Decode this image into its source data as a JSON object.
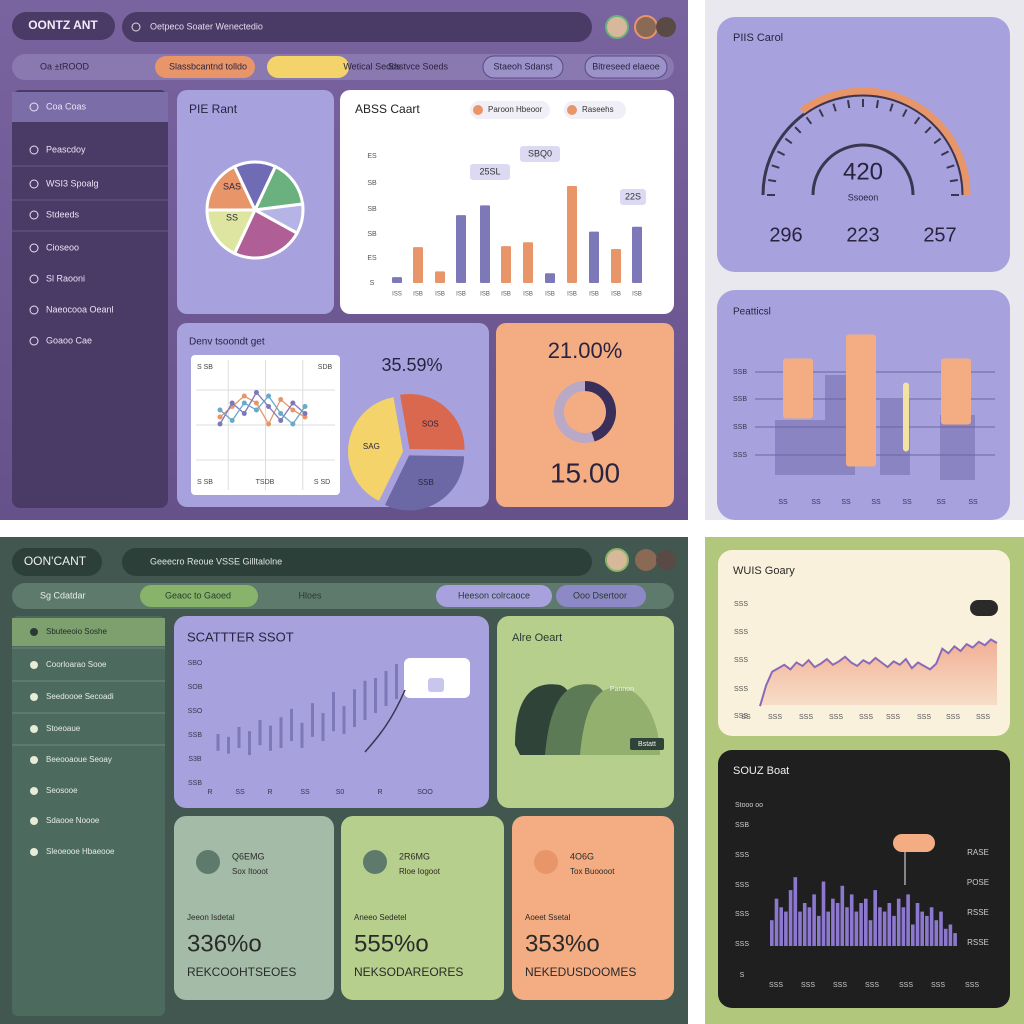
{
  "top_left": {
    "brand": "OONTZ ANT",
    "search": "Oetpeco Soater   Wenectedio",
    "tabs": [
      "Oa ±tROOD",
      "Slassbcantnd tolldo",
      "Wetical Sedds",
      "Sastvce Soeds",
      "Staeoh Sdanst",
      "Bitreseed elaeoe"
    ],
    "sidebar": [
      "Coa Coas",
      "Peascdoy",
      "WSI3 Spoalg",
      "Stdeeds",
      "Cioseoo",
      "Sl Raooni",
      "Naeocooa Oeanl",
      "Goaoo Cae"
    ],
    "pie": {
      "title": "PIE Rant",
      "labels": [
        "SAS",
        "SS"
      ],
      "values": [
        18,
        14,
        16,
        10,
        24,
        18
      ],
      "colors": [
        "#e8956a",
        "#6f6bb5",
        "#6ab17f",
        "#b6b3e6",
        "#b05e96",
        "#dde5a0"
      ]
    },
    "bar": {
      "title": "ABSS Caart",
      "legend": [
        "Paroon Hbeoor",
        "Raseehs"
      ],
      "ytick_labels": [
        "ES",
        "SB",
        "SB",
        "SB",
        "ES",
        "S"
      ],
      "categories": [
        "ISS",
        "ISB",
        "ISB",
        "ISB",
        "ISB",
        "ISB",
        "ISB",
        "ISB",
        "ISB",
        "ISB",
        "ISB",
        "ISB"
      ],
      "values": [
        6,
        37,
        12,
        70,
        80,
        38,
        42,
        10,
        100,
        53,
        35,
        58
      ],
      "colors": [
        "#7d78b8",
        "#e8956a",
        "#e8956a",
        "#7d78b8",
        "#7d78b8",
        "#e8956a",
        "#e8956a",
        "#7d78b8",
        "#e8956a",
        "#7d78b8",
        "#e8956a",
        "#7d78b8"
      ],
      "ylim": [
        0,
        100
      ],
      "callouts": [
        "SBQ0",
        "25SL",
        "22S"
      ]
    },
    "line": {
      "title": "Denv tsoondt get",
      "corner_labels": [
        "S SB",
        "SDB",
        "S SB",
        "TSDB",
        "S SD"
      ],
      "ylim": [
        0,
        100
      ],
      "series": [
        {
          "color": "#e8956a",
          "values": [
            40,
            55,
            70,
            60,
            30,
            65,
            50,
            40
          ]
        },
        {
          "color": "#7d78b8",
          "values": [
            30,
            60,
            45,
            75,
            55,
            35,
            60,
            45
          ]
        },
        {
          "color": "#6aa9c8",
          "values": [
            50,
            35,
            60,
            50,
            70,
            45,
            30,
            55
          ]
        }
      ]
    },
    "split": {
      "value_text": "35.59%",
      "labels": [
        "SOS",
        "SSB",
        "SAG"
      ],
      "values": [
        28,
        32,
        40
      ],
      "colors": [
        "#d9684e",
        "#6c68a6",
        "#f3d36a"
      ]
    },
    "donut": {
      "top": "21.00%",
      "bottom": "15.00",
      "values": [
        45,
        55
      ],
      "colors": [
        "#3a2f5a",
        "#b9a9c6"
      ]
    }
  },
  "top_right": {
    "gauge": {
      "title": "PIIS Carol",
      "value": 420,
      "range": [
        0,
        600
      ],
      "caption": "Ssoeon",
      "stats": [
        296,
        223,
        257
      ]
    },
    "bars": {
      "title": "Peatticsl",
      "ytick_labels": [
        "SSB",
        "SSB",
        "SSB",
        "SSS"
      ],
      "xtick_labels": [
        "SS",
        "SS",
        "SS",
        "SS",
        "SS",
        "SS",
        "SS"
      ],
      "ylim": [
        0,
        100
      ],
      "low": [
        41,
        9,
        19,
        37
      ],
      "high": [
        81,
        97,
        65,
        81
      ],
      "colors": [
        "#f4ad83",
        "#f4ad83",
        "#f3e3a0",
        "#f4ad83"
      ]
    }
  },
  "bottom_left": {
    "brand": "OON'CANT",
    "search": "Geeecro Reoue   VSSE Gilltalolne",
    "tabs": [
      "Sg Cdatdar",
      "Geaoc to Gaoed",
      "Hloes",
      "Heeson colrcaoce",
      "Ooo Dsertoor"
    ],
    "sidebar": [
      "Sbuteeoio Soshe",
      "Coorloarao Sooe",
      "Seedoooe Secoadi",
      "Stoeoaue",
      "Beeooaoue Seoay",
      "Seosooe",
      "Sdaooe Noooe",
      "Sleoeooe Hbaeooe"
    ],
    "scatter": {
      "title": "SCATTTER SSOT",
      "ytick_labels": [
        "SBO",
        "SOB",
        "SSO",
        "SSB",
        "S3B",
        "SSB"
      ],
      "xtick_labels": [
        "R",
        "SS",
        "R",
        "SS",
        "S0",
        "R",
        "SOO"
      ],
      "ylim": [
        0,
        100
      ],
      "low": [
        28,
        26,
        30,
        25,
        32,
        28,
        30,
        35,
        30,
        38,
        35,
        42,
        40,
        45,
        50,
        55,
        60,
        65
      ],
      "high": [
        40,
        38,
        45,
        42,
        50,
        46,
        52,
        58,
        48,
        62,
        55,
        70,
        60,
        72,
        78,
        80,
        85,
        90
      ]
    },
    "area": {
      "title": "Alre Oeart",
      "labels": [
        "Pannon",
        "Bstatt"
      ]
    },
    "kpis": [
      {
        "icon_text": "Q6EMG",
        "sub": "Sox Itooot",
        "label": "Jeeon Isdetal",
        "value": "336%o",
        "caption": "REKCOOHTSEOES"
      },
      {
        "icon_text": "2R6MG",
        "sub": "Rloe Iogoot",
        "label": "Aneeo Sedetel",
        "value": "555%o",
        "caption": "NEKSODAREORES"
      },
      {
        "icon_text": "4O6G",
        "sub": "Tox Buoooot",
        "label": "Aoeet Ssetal",
        "value": "353%o",
        "caption": "NEKEDUSDOOMES"
      }
    ]
  },
  "bottom_right": {
    "line": {
      "title": "WUIS Goary",
      "ytick_labels": [
        "SSS",
        "SSS",
        "SSS",
        "SSS",
        "SSS"
      ],
      "xtick_labels": [
        "SS",
        "SSS",
        "SSS",
        "SSS",
        "SSS",
        "SSS",
        "SSS",
        "SSS",
        "SSS"
      ],
      "ylim": [
        0,
        100
      ],
      "values": [
        12,
        30,
        42,
        45,
        48,
        44,
        50,
        47,
        52,
        46,
        49,
        53,
        48,
        51,
        55,
        50,
        47,
        52,
        49,
        54,
        50,
        46,
        51,
        48,
        53,
        45,
        50,
        47,
        44,
        49,
        62,
        58,
        64,
        60,
        66,
        63,
        68,
        65,
        70,
        67
      ]
    },
    "hist": {
      "title": "SOUZ Boat",
      "note": "Stooo oo",
      "ytick_labels": [
        "SSB",
        "SSS",
        "SSS",
        "SSS",
        "SSS",
        "S"
      ],
      "right_labels": [
        "RASE",
        "POSE",
        "RSSE",
        "RSSE"
      ],
      "xtick_labels": [
        "SSS",
        "SSS",
        "SSS",
        "SSS",
        "SSS",
        "SSS",
        "SSS"
      ],
      "ylim": [
        0,
        100
      ],
      "values": [
        30,
        55,
        45,
        40,
        65,
        80,
        40,
        50,
        45,
        60,
        35,
        75,
        40,
        55,
        50,
        70,
        45,
        60,
        40,
        50,
        55,
        30,
        65,
        45,
        40,
        50,
        35,
        55,
        45,
        60,
        25,
        50,
        40,
        35,
        45,
        30,
        40,
        20,
        25,
        15
      ]
    }
  }
}
